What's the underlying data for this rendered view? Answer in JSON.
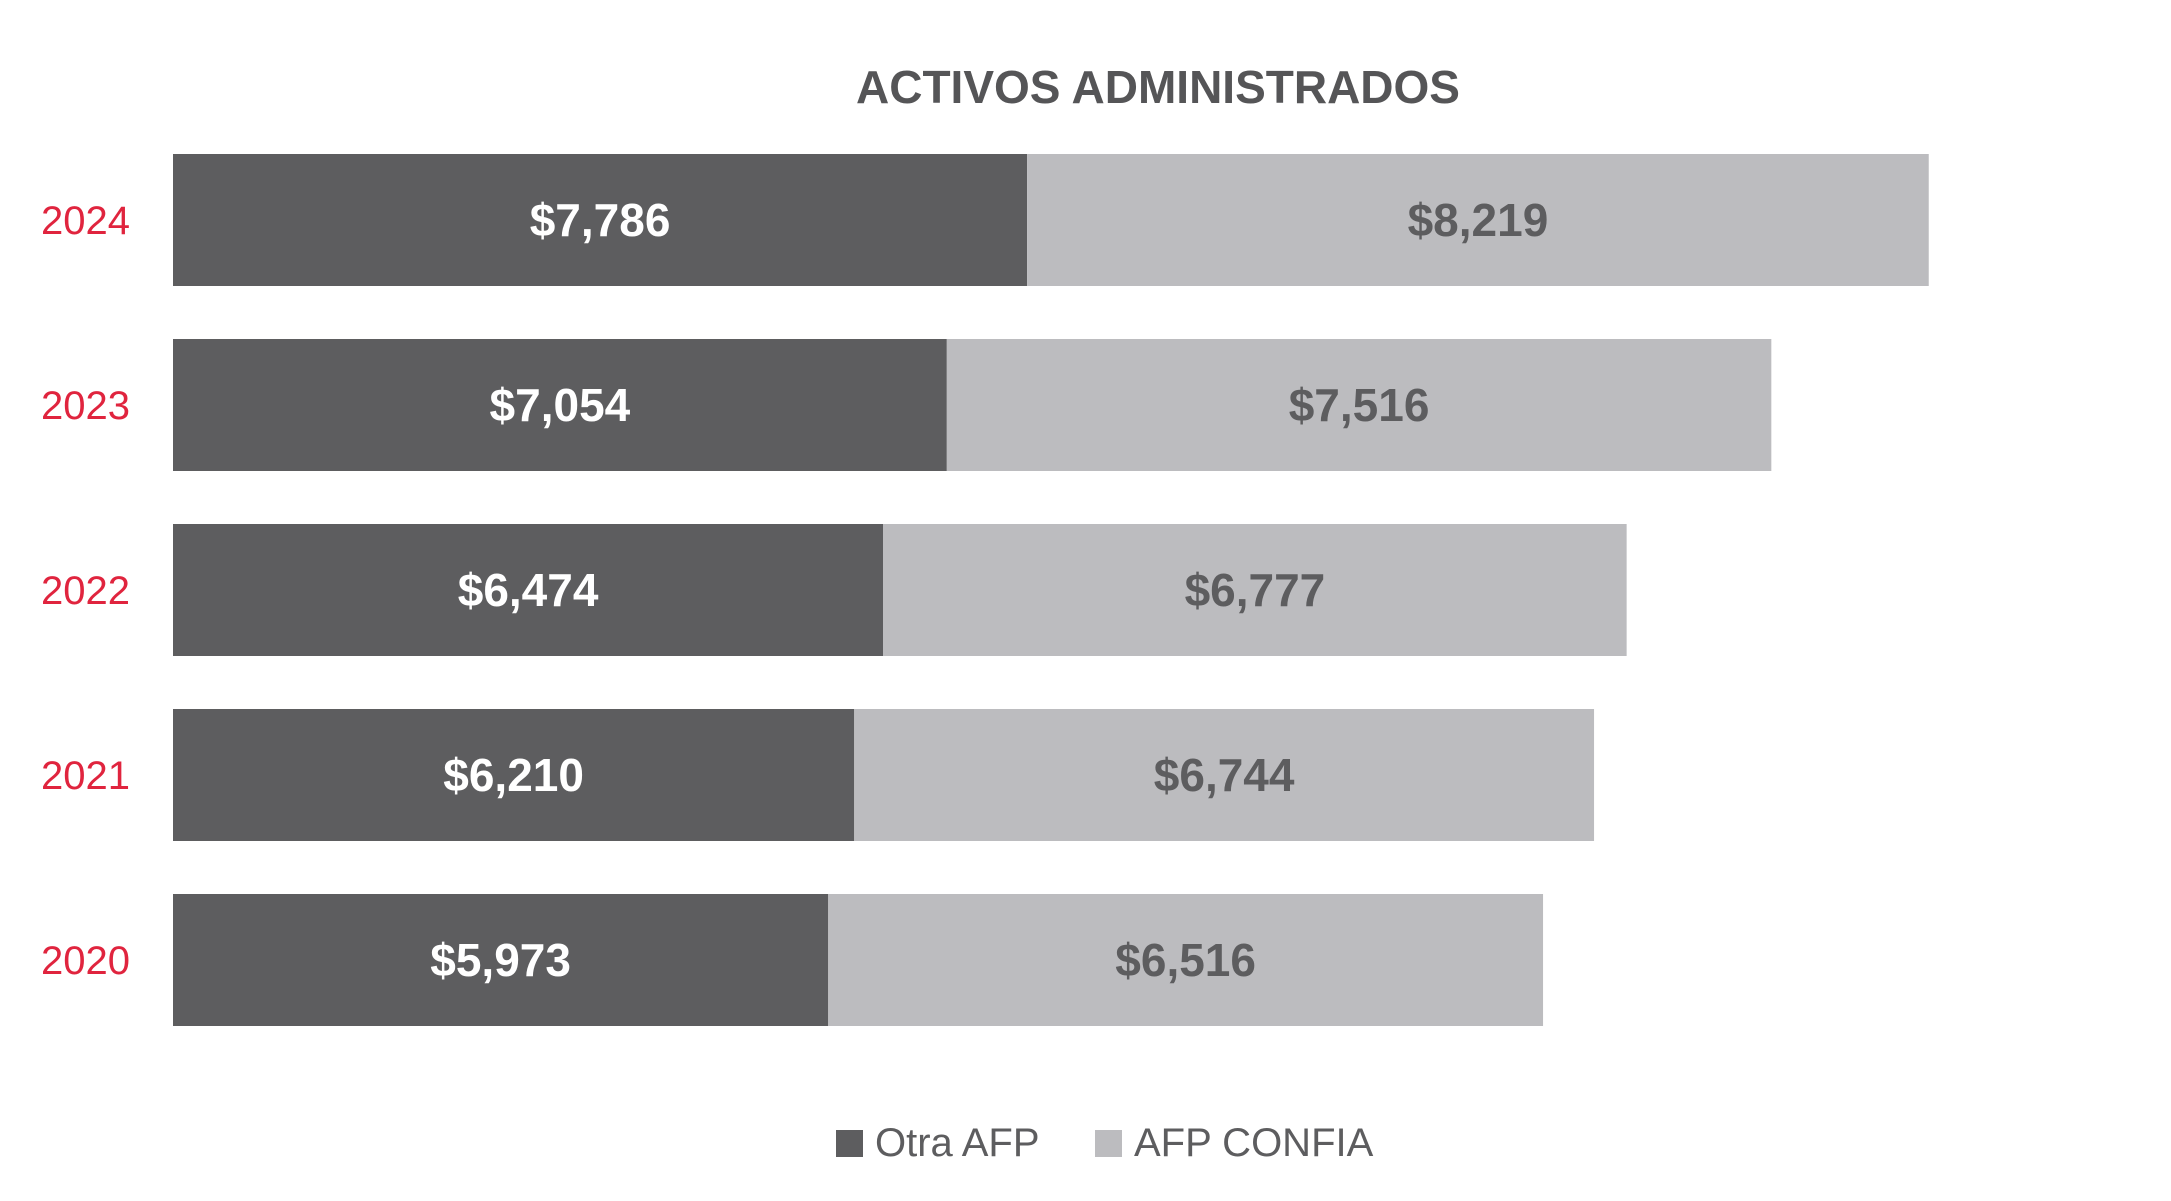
{
  "chart_data": {
    "type": "bar",
    "orientation": "horizontal",
    "stacked": true,
    "title": "ACTIVOS ADMINISTRADOS",
    "categories": [
      "2024",
      "2023",
      "2022",
      "2021",
      "2020"
    ],
    "series": [
      {
        "name": "Otra AFP",
        "color": "#5d5d5f",
        "values": [
          7786,
          7054,
          6474,
          6210,
          5973
        ],
        "labels": [
          "$7,786",
          "$7,054",
          "$6,474",
          "$6,210",
          "$5,973"
        ]
      },
      {
        "name": "AFP CONFIA",
        "color": "#bcbcbf",
        "values": [
          8219,
          7516,
          6777,
          6744,
          6516
        ],
        "labels": [
          "$8,219",
          "$7,516",
          "$6,777",
          "$6,744",
          "$6,516"
        ]
      }
    ],
    "category_label_color": "#e0243e",
    "grid": false,
    "axes_visible": false,
    "legend_position": "bottom-center"
  }
}
